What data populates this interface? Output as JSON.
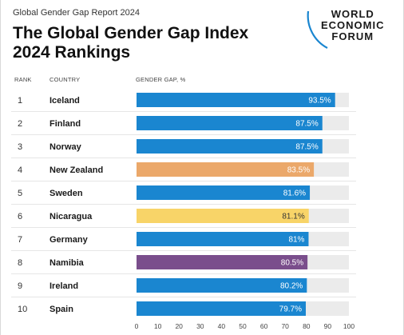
{
  "header": {
    "report_label": "Global Gender Gap Report 2024",
    "title": "The Global Gender Gap Index 2024 Rankings",
    "logo_text": [
      "WORLD",
      "ECONOMIC",
      "FORUM"
    ]
  },
  "chart_data": {
    "type": "bar",
    "orientation": "horizontal",
    "title": "The Global Gender Gap Index 2024 Rankings",
    "column_headers": {
      "rank": "RANK",
      "country": "COUNTRY",
      "value": "GENDER GAP, %"
    },
    "xlim": [
      0,
      100
    ],
    "x_ticks": [
      0,
      10,
      20,
      30,
      40,
      50,
      60,
      70,
      80,
      90,
      100
    ],
    "background_bar_color": "#ebebeb",
    "rows": [
      {
        "rank": "1",
        "country": "Iceland",
        "value": 93.5,
        "label": "93.5%",
        "color": "#1a86d0"
      },
      {
        "rank": "2",
        "country": "Finland",
        "value": 87.5,
        "label": "87.5%",
        "color": "#1a86d0"
      },
      {
        "rank": "3",
        "country": "Norway",
        "value": 87.5,
        "label": "87.5%",
        "color": "#1a86d0"
      },
      {
        "rank": "4",
        "country": "New Zealand",
        "value": 83.5,
        "label": "83.5%",
        "color": "#eba86a"
      },
      {
        "rank": "5",
        "country": "Sweden",
        "value": 81.6,
        "label": "81.6%",
        "color": "#1a86d0"
      },
      {
        "rank": "6",
        "country": "Nicaragua",
        "value": 81.1,
        "label": "81.1%",
        "color": "#f8d468"
      },
      {
        "rank": "7",
        "country": "Germany",
        "value": 81,
        "label": "81%",
        "color": "#1a86d0"
      },
      {
        "rank": "8",
        "country": "Namibia",
        "value": 80.5,
        "label": "80.5%",
        "color": "#7a4e8c"
      },
      {
        "rank": "9",
        "country": "Ireland",
        "value": 80.2,
        "label": "80.2%",
        "color": "#1a86d0"
      },
      {
        "rank": "10",
        "country": "Spain",
        "value": 79.7,
        "label": "79.7%",
        "color": "#1a86d0"
      }
    ]
  }
}
